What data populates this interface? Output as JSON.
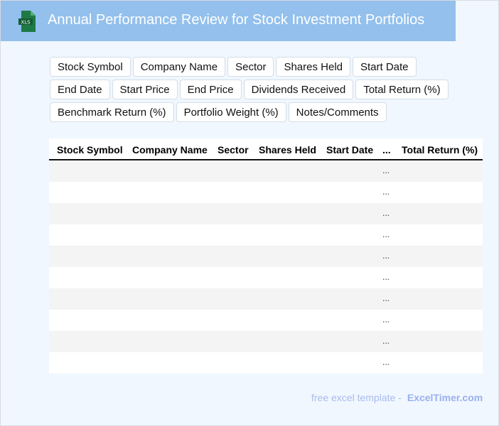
{
  "header": {
    "title": "Annual Performance Review for Stock Investment Portfolios",
    "logo_text": "XLS"
  },
  "tags": [
    "Stock Symbol",
    "Company Name",
    "Sector",
    "Shares Held",
    "Start Date",
    "End Date",
    "Start Price",
    "End Price",
    "Dividends Received",
    "Total Return (%)",
    "Benchmark Return (%)",
    "Portfolio Weight (%)",
    "Notes/Comments"
  ],
  "table": {
    "columns": [
      "Stock Symbol",
      "Company Name",
      "Sector",
      "Shares Held",
      "Start Date",
      "...",
      "Total Return (%)"
    ],
    "ellipsis": "...",
    "row_count": 10
  },
  "footer": {
    "text": "free excel template -",
    "brand": "ExcelTimer.com"
  }
}
